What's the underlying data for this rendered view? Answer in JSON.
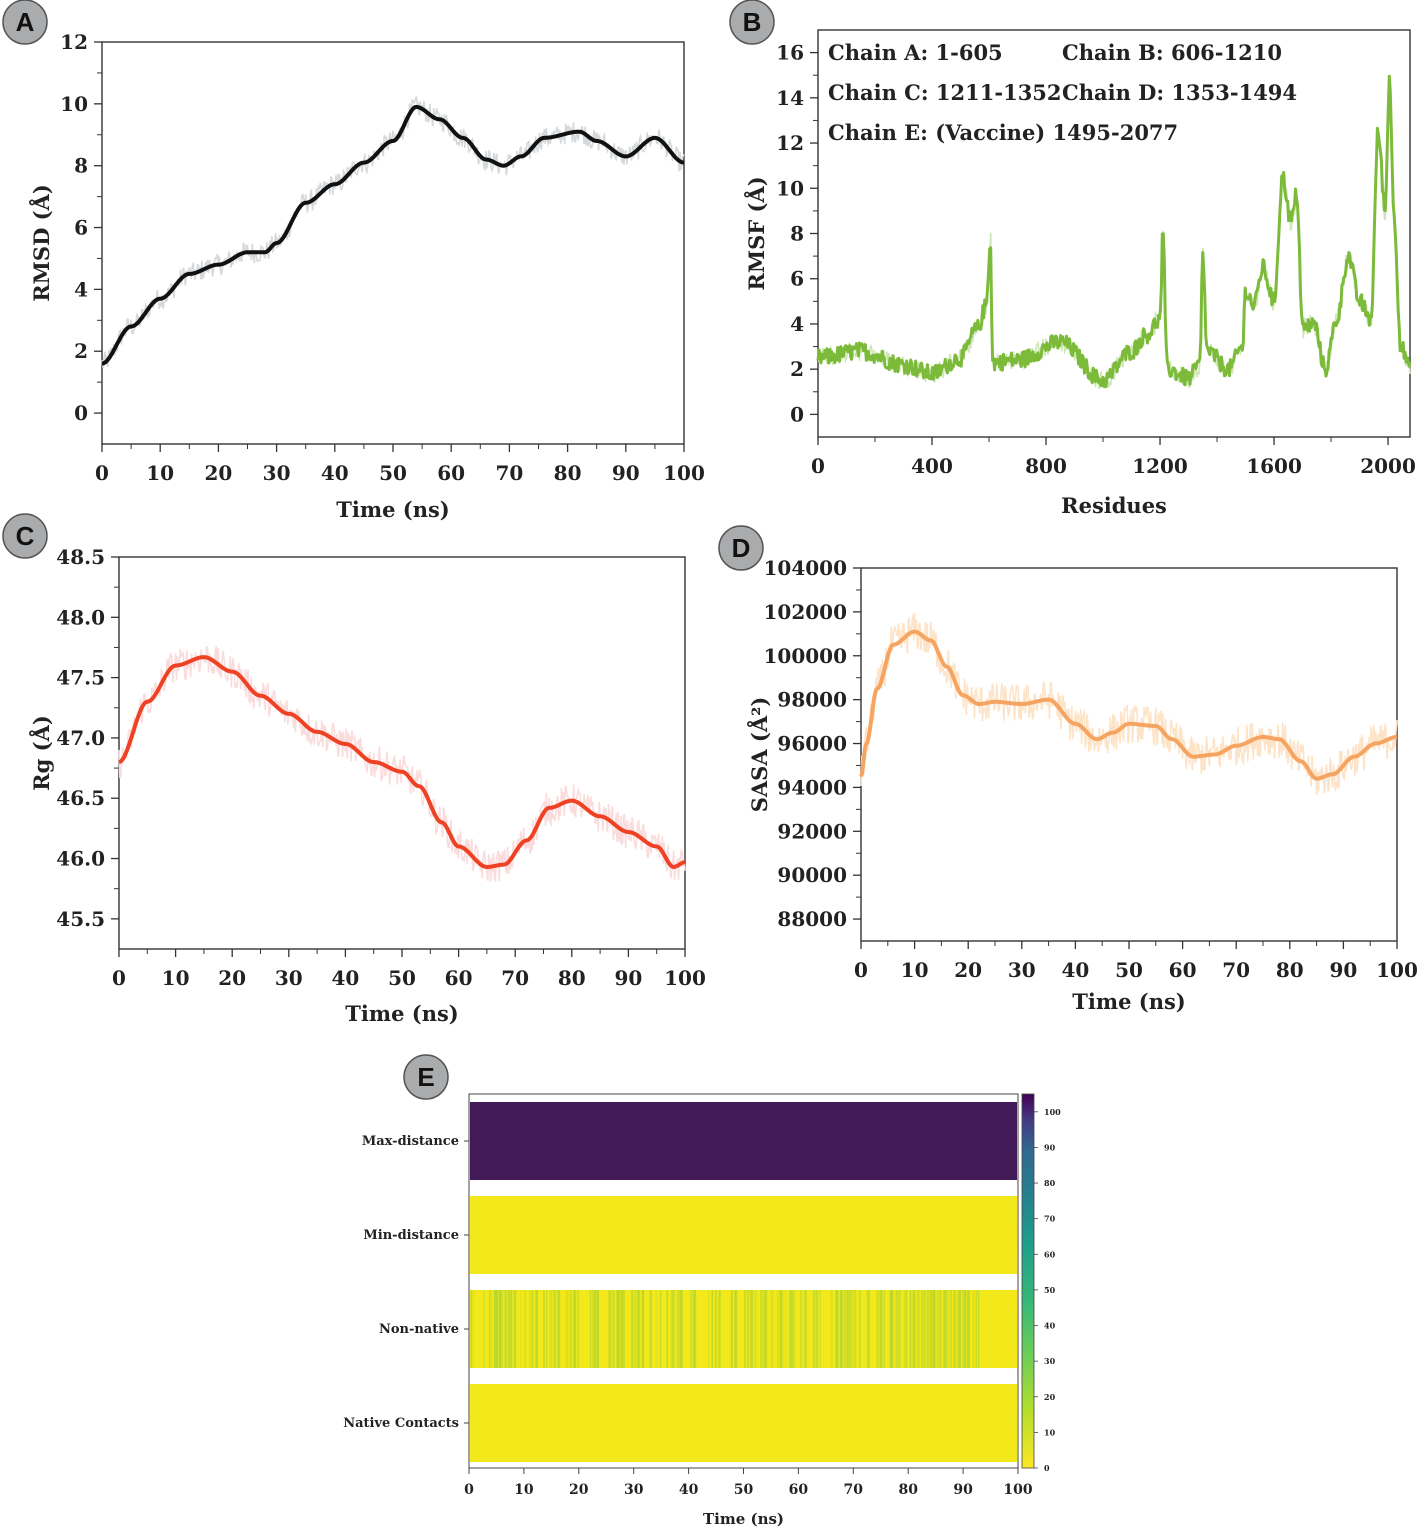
{
  "chart_data": [
    {
      "panel": "A",
      "type": "line",
      "xlabel": "Time (ns)",
      "ylabel": "RMSD (Å)",
      "xlim": [
        0,
        100
      ],
      "ylim": [
        -1,
        12
      ],
      "xticks": [
        0,
        10,
        20,
        30,
        40,
        50,
        60,
        70,
        80,
        90,
        100
      ],
      "yticks": [
        0,
        2,
        4,
        6,
        8,
        10,
        12
      ],
      "colors": {
        "smooth": "#111111",
        "raw": "#d5d9dc"
      },
      "series": [
        {
          "name": "smoothed",
          "x": [
            0,
            5,
            10,
            15,
            20,
            25,
            28,
            30,
            35,
            40,
            45,
            50,
            54,
            58,
            62,
            66,
            69,
            72,
            76,
            82,
            85,
            90,
            95,
            100
          ],
          "y": [
            1.6,
            2.8,
            3.7,
            4.5,
            4.8,
            5.2,
            5.2,
            5.5,
            6.8,
            7.4,
            8.1,
            8.8,
            9.9,
            9.5,
            8.9,
            8.2,
            8.0,
            8.3,
            8.9,
            9.1,
            8.8,
            8.3,
            8.9,
            8.1
          ],
          "noise": 0.35
        }
      ]
    },
    {
      "panel": "B",
      "type": "line",
      "xlabel": "Residues",
      "ylabel": "RMSF (Å)",
      "xlim": [
        0,
        2077
      ],
      "ylim": [
        -1,
        17
      ],
      "xticks": [
        0,
        400,
        800,
        1200,
        1600,
        2000
      ],
      "yticks": [
        0,
        2,
        4,
        6,
        8,
        10,
        12,
        14,
        16
      ],
      "colors": {
        "smooth": "#7cbb3a",
        "raw": "#cfe6b5"
      },
      "annotations": [
        "Chain A: 1-605",
        "Chain B: 606-1210",
        "Chain C: 1211-1352",
        "Chain D: 1353-1494",
        "Chain E: (Vaccine) 1495-2077"
      ],
      "series": [
        {
          "name": "RMSF",
          "x": [
            0,
            150,
            300,
            400,
            500,
            560,
            590,
            605,
            612,
            700,
            850,
            1000,
            1100,
            1150,
            1200,
            1210,
            1225,
            1300,
            1340,
            1350,
            1365,
            1440,
            1490,
            1500,
            1530,
            1560,
            1600,
            1630,
            1660,
            1680,
            1700,
            1740,
            1780,
            1820,
            1860,
            1900,
            1940,
            1965,
            1990,
            2005,
            2020,
            2045,
            2077
          ],
          "y": [
            2.5,
            2.8,
            2.2,
            1.8,
            2.5,
            3.8,
            4.8,
            7.8,
            2.3,
            2.4,
            3.2,
            1.5,
            2.8,
            3.5,
            4.2,
            8.0,
            2.0,
            1.6,
            2.2,
            7.0,
            2.8,
            2.0,
            3.0,
            5.5,
            4.8,
            6.5,
            5.0,
            10.5,
            8.5,
            9.8,
            3.8,
            4.0,
            2.0,
            4.2,
            7.0,
            5.0,
            4.2,
            12.5,
            9.0,
            15.0,
            9.0,
            3.0,
            2.0
          ],
          "noise": 0.45
        }
      ]
    },
    {
      "panel": "C",
      "type": "line",
      "xlabel": "Time (ns)",
      "ylabel": "Rg (Å)",
      "xlim": [
        0,
        100
      ],
      "ylim": [
        45.25,
        48.5
      ],
      "xticks": [
        0,
        10,
        20,
        30,
        40,
        50,
        60,
        70,
        80,
        90,
        100
      ],
      "yticks": [
        45.5,
        46.0,
        46.5,
        47.0,
        47.5,
        48.0,
        48.5
      ],
      "colors": {
        "smooth": "#ef4123",
        "raw": "#fbdcdc"
      },
      "series": [
        {
          "name": "smoothed",
          "x": [
            0,
            5,
            10,
            15,
            20,
            25,
            30,
            35,
            40,
            45,
            50,
            53,
            57,
            60,
            65,
            68,
            72,
            76,
            80,
            85,
            90,
            95,
            98,
            100
          ],
          "y": [
            46.8,
            47.3,
            47.6,
            47.67,
            47.55,
            47.35,
            47.2,
            47.05,
            46.95,
            46.8,
            46.72,
            46.6,
            46.3,
            46.1,
            45.93,
            45.95,
            46.15,
            46.42,
            46.48,
            46.35,
            46.22,
            46.1,
            45.93,
            45.97
          ],
          "noise": 0.14
        }
      ]
    },
    {
      "panel": "D",
      "type": "line",
      "xlabel": "Time (ns)",
      "ylabel": "SASA (Å²)",
      "xlim": [
        0,
        100
      ],
      "ylim": [
        87000,
        104000
      ],
      "xticks": [
        0,
        10,
        20,
        30,
        40,
        50,
        60,
        70,
        80,
        90,
        100
      ],
      "yticks": [
        88000,
        90000,
        92000,
        94000,
        96000,
        98000,
        100000,
        102000,
        104000
      ],
      "colors": {
        "smooth": "#f5a461",
        "raw": "#fde3c7"
      },
      "series": [
        {
          "name": "smoothed",
          "x": [
            0,
            1,
            3,
            6,
            10,
            13,
            16,
            19,
            22,
            25,
            30,
            35,
            40,
            44,
            47,
            50,
            55,
            58,
            62,
            66,
            70,
            75,
            78,
            82,
            85,
            88,
            92,
            96,
            100
          ],
          "y": [
            94500,
            96000,
            98500,
            100500,
            101100,
            100700,
            99500,
            98200,
            97800,
            97900,
            97800,
            98000,
            96900,
            96200,
            96500,
            96900,
            96800,
            96200,
            95400,
            95500,
            95900,
            96300,
            96200,
            95200,
            94400,
            94600,
            95400,
            96000,
            96300
          ],
          "noise": 900
        }
      ]
    },
    {
      "panel": "E",
      "type": "heatmap",
      "xlabel": "Time (ns)",
      "rows": [
        "Max-distance",
        "Min-distance",
        "Non-native",
        "Native Contacts"
      ],
      "row_values": [
        100,
        5,
        8,
        2
      ],
      "xlim": [
        0,
        100
      ],
      "xticks": [
        0,
        10,
        20,
        30,
        40,
        50,
        60,
        70,
        80,
        90,
        100
      ],
      "colorbar": {
        "min": 0,
        "max": 105,
        "ticks": [
          0,
          10,
          20,
          30,
          40,
          50,
          60,
          70,
          80,
          90,
          100
        ]
      },
      "colors": {
        "max": "#431a58",
        "low": "#f2e81a",
        "mid": "#b6d630"
      }
    }
  ],
  "badges": [
    "A",
    "B",
    "C",
    "D",
    "E"
  ]
}
